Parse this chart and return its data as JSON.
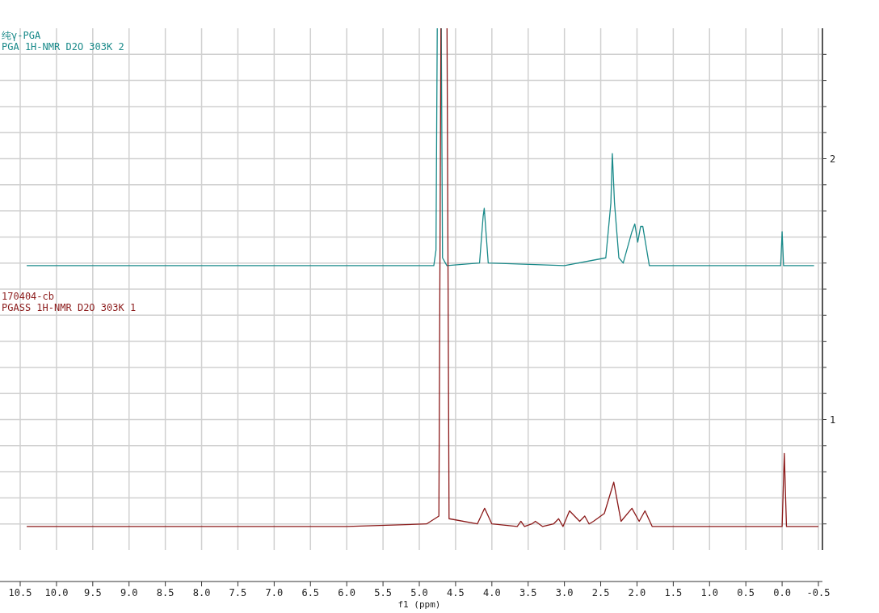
{
  "chart_data": {
    "type": "line",
    "xlabel": "f1 (ppm)",
    "xlim": [
      10.5,
      -0.5
    ],
    "xticks": [
      {
        "value": 10.5,
        "label": "10.5"
      },
      {
        "value": 10,
        "label": "10.0"
      },
      9.5,
      {
        "value": 9,
        "label": "9.0"
      },
      8.5,
      {
        "value": 8,
        "label": "8.0"
      },
      7.5,
      {
        "value": 7,
        "label": "7.0"
      },
      6.5,
      {
        "value": 6,
        "label": "6.0"
      },
      5.5,
      {
        "value": 5,
        "label": "5.0"
      },
      4.5,
      {
        "value": 4,
        "label": "4.0"
      },
      3.5,
      {
        "value": 3,
        "label": "3.0"
      },
      2.5,
      {
        "value": 2,
        "label": "2.0"
      },
      1.5,
      {
        "value": 1,
        "label": "1.0"
      },
      0.5,
      {
        "value": 0,
        "label": "0.0"
      },
      -0.5
    ],
    "ylim": [
      0.5,
      2.5
    ],
    "yticks": [
      {
        "value": 0.6,
        "label": null
      },
      {
        "value": 0.7,
        "label": null
      },
      {
        "value": 0.8,
        "label": null
      },
      {
        "value": 0.9,
        "label": null
      },
      {
        "value": 1,
        "label": "1"
      },
      {
        "value": 1.1,
        "label": null
      },
      {
        "value": 1.2,
        "label": null
      },
      {
        "value": 1.3,
        "label": null
      },
      {
        "value": 1.4,
        "label": null
      },
      {
        "value": 1.5,
        "label": null
      },
      {
        "value": 1.6,
        "label": null
      },
      {
        "value": 1.7,
        "label": null
      },
      {
        "value": 1.8,
        "label": null
      },
      {
        "value": 1.9,
        "label": null
      },
      {
        "value": 2,
        "label": "2"
      },
      {
        "value": 2.1,
        "label": null
      },
      {
        "value": 2.2,
        "label": null
      },
      {
        "value": 2.3,
        "label": null
      },
      {
        "value": 2.4,
        "label": null
      }
    ],
    "grid": true,
    "series": [
      {
        "name": "纯γ-PGA",
        "color": "#1a8a8a",
        "x": [
          10.41,
          8,
          6,
          4.8,
          4.77,
          4.75,
          4.7,
          4.68,
          4.62,
          4.17,
          4.12,
          4.105,
          4.05,
          3,
          2.43,
          2.36,
          2.34,
          2.31,
          2.25,
          2.19,
          2.07,
          2.03,
          1.99,
          1.95,
          1.92,
          1.83,
          0.5,
          0.02,
          0,
          -0.02,
          -0.44
        ],
        "values": [
          1.59,
          1.59,
          1.59,
          1.59,
          1.65,
          null,
          null,
          1.62,
          1.59,
          1.6,
          1.78,
          1.81,
          1.6,
          1.59,
          1.62,
          1.83,
          2.02,
          1.83,
          1.62,
          1.6,
          1.72,
          1.75,
          1.68,
          1.74,
          1.74,
          1.59,
          1.59,
          1.59,
          1.72,
          1.59,
          1.59
        ]
      },
      {
        "name": "170404-cb",
        "color": "#8b1a1a",
        "x": [
          10.41,
          8,
          6,
          4.9,
          4.73,
          4.7,
          4.68,
          4.64,
          4.62,
          4.59,
          4.2,
          4.1,
          4.0,
          3.65,
          3.6,
          3.55,
          3.45,
          3.4,
          3.3,
          3.15,
          3.08,
          3.02,
          2.93,
          2.79,
          2.72,
          2.66,
          2.6,
          2.45,
          2.32,
          2.22,
          2.07,
          1.97,
          1.89,
          1.79,
          0.5,
          0.0,
          -0.03,
          -0.06,
          -0.5
        ],
        "values": [
          0.59,
          0.59,
          0.59,
          0.6,
          0.63,
          null,
          null,
          null,
          null,
          0.62,
          0.6,
          0.66,
          0.6,
          0.59,
          0.61,
          0.59,
          0.6,
          0.61,
          0.59,
          0.6,
          0.62,
          0.59,
          0.65,
          0.61,
          0.63,
          0.6,
          0.61,
          0.64,
          0.76,
          0.61,
          0.66,
          0.61,
          0.65,
          0.59,
          0.59,
          0.59,
          0.87,
          0.59,
          0.59
        ]
      }
    ],
    "annotations": [
      "PGA 1H-NMR D2O 303K 2",
      "PGASS  1H-NMR D2O 303K 1"
    ]
  }
}
